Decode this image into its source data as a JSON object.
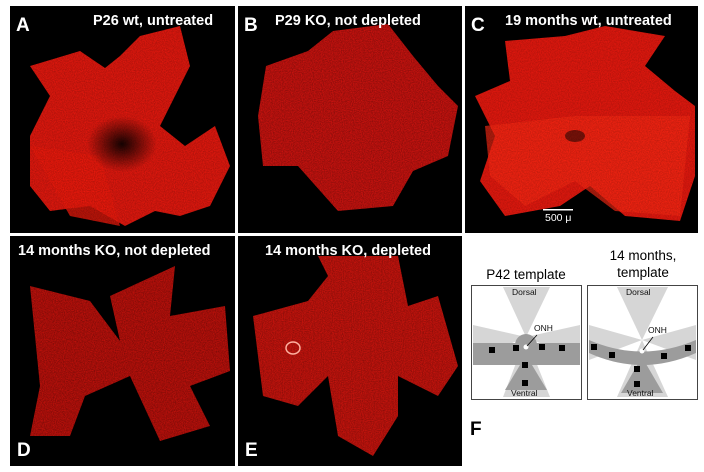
{
  "panels": [
    {
      "letter": "A",
      "title": "P26 wt, untreated"
    },
    {
      "letter": "B",
      "title": "P29 KO, not depleted"
    },
    {
      "letter": "C",
      "title": "19 months wt, untreated"
    },
    {
      "letter": "D",
      "title": "14 months KO, not depleted"
    },
    {
      "letter": "E",
      "title": "14 months KO, depleted"
    }
  ],
  "scale_bar": {
    "label": "500 μ"
  },
  "template_panel": {
    "letter": "F",
    "templates": [
      {
        "title": "P42 template",
        "dorsal": "Dorsal",
        "ventral": "Ventral",
        "onh": "ONH"
      },
      {
        "title_line1": "14 months,",
        "title_line2": "template",
        "dorsal": "Dorsal",
        "ventral": "Ventral",
        "onh": "ONH"
      }
    ]
  },
  "colors": {
    "stain": "#e8190f",
    "background": "#000000",
    "template_light": "#d6d6d6",
    "template_dark": "#9c9c9c"
  }
}
